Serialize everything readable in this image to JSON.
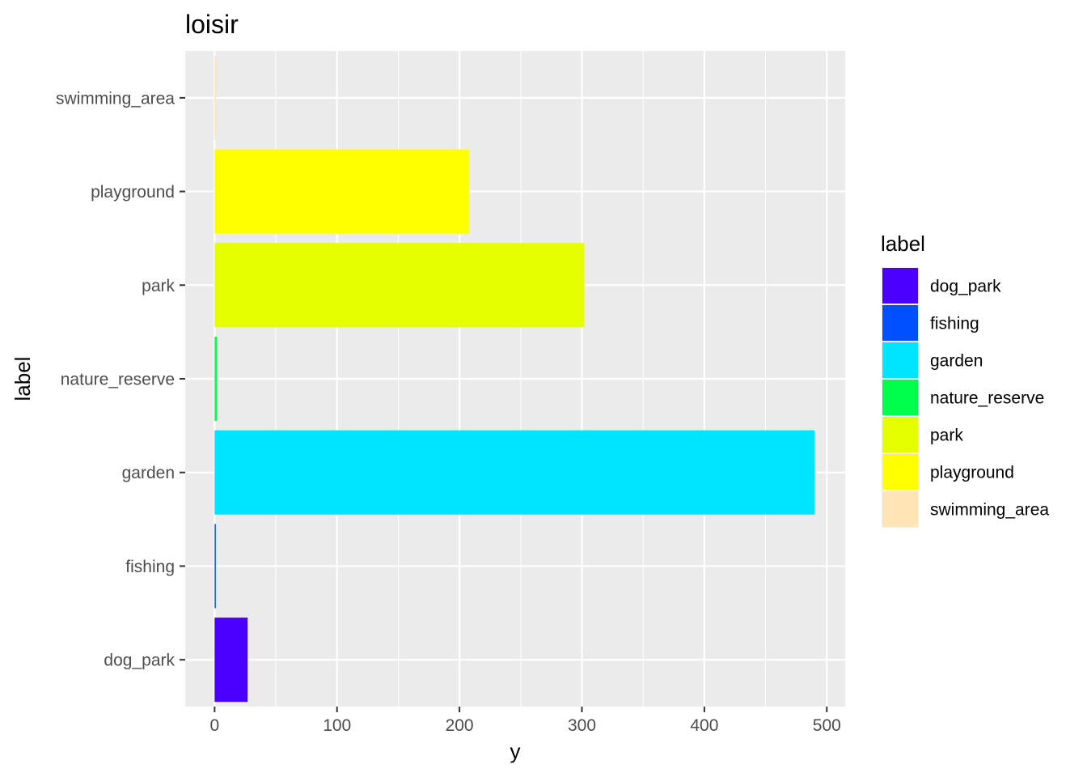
{
  "chart_data": {
    "type": "bar",
    "orientation": "horizontal",
    "title": "loisir",
    "xlabel": "y",
    "ylabel": "label",
    "categories": [
      "dog_park",
      "fishing",
      "garden",
      "nature_reserve",
      "park",
      "playground",
      "swimming_area"
    ],
    "values": [
      27,
      1,
      490,
      2,
      302,
      208,
      1
    ],
    "colors": [
      "#4B00FF",
      "#0050FF",
      "#00E5FF",
      "#00FF4D",
      "#E5FF00",
      "#FFFF00",
      "#FFE4B5"
    ],
    "xlim": [
      -24,
      515
    ],
    "xticks": [
      0,
      100,
      200,
      300,
      400,
      500
    ],
    "xtick_labels": [
      "0",
      "100",
      "200",
      "300",
      "400",
      "500"
    ],
    "grid": true,
    "legend": {
      "title": "label",
      "position": "right",
      "entries": [
        "dog_park",
        "fishing",
        "garden",
        "nature_reserve",
        "park",
        "playground",
        "swimming_area"
      ]
    },
    "panel_background": "#EBEBEB",
    "grid_color": "#FFFFFF"
  }
}
